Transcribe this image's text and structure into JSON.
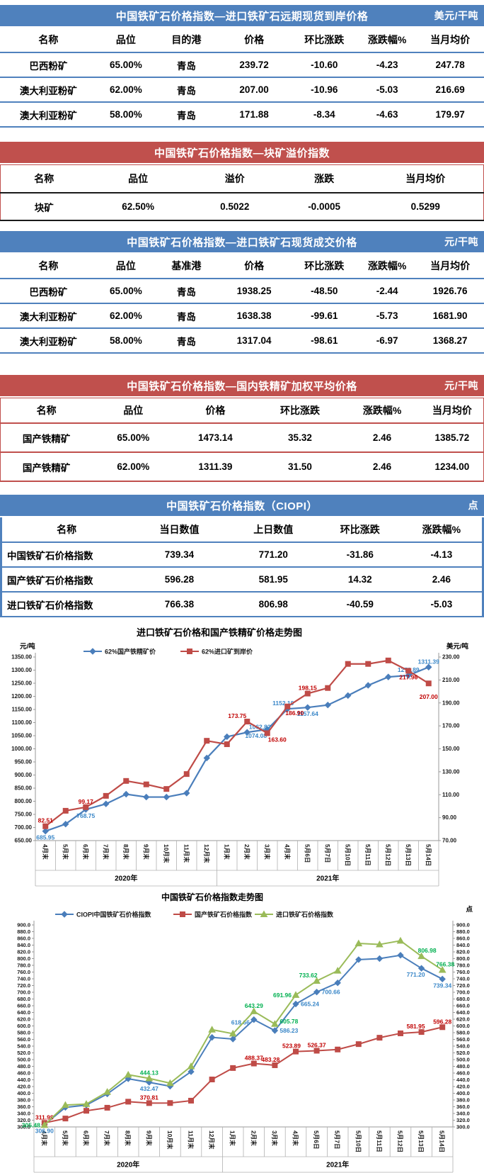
{
  "report": {
    "theme_colors": {
      "blue": "#4f81bd",
      "red": "#c0504d"
    },
    "tables": [
      {
        "id": "import-forward",
        "title": "中国铁矿石价格指数—进口铁矿石远期现货到岸价格",
        "unit": "美元/干吨",
        "theme": "blue",
        "columns": [
          "名称",
          "品位",
          "目的港",
          "价格",
          "环比涨跌",
          "涨跌幅%",
          "当月均价"
        ],
        "rows": [
          [
            "巴西粉矿",
            "65.00%",
            "青岛",
            "239.72",
            "-10.60",
            "-4.23",
            "247.78"
          ],
          [
            "澳大利亚粉矿",
            "62.00%",
            "青岛",
            "207.00",
            "-10.96",
            "-5.03",
            "216.69"
          ],
          [
            "澳大利亚粉矿",
            "58.00%",
            "青岛",
            "171.88",
            "-8.34",
            "-4.63",
            "179.97"
          ]
        ]
      },
      {
        "id": "lump-premium",
        "title": "中国铁矿石价格指数—块矿溢价指数",
        "unit": "",
        "theme": "red",
        "columns": [
          "名称",
          "品位",
          "溢价",
          "涨跌",
          "当月均价"
        ],
        "rows": [
          [
            "块矿",
            "62.50%",
            "0.5022",
            "-0.0005",
            "0.5299"
          ]
        ]
      },
      {
        "id": "import-spot",
        "title": "中国铁矿石价格指数—进口铁矿石现货成交价格",
        "unit": "元/干吨",
        "theme": "blue",
        "columns": [
          "名称",
          "品位",
          "基准港",
          "价格",
          "环比涨跌",
          "涨跌幅%",
          "当月均价"
        ],
        "rows": [
          [
            "巴西粉矿",
            "65.00%",
            "青岛",
            "1938.25",
            "-48.50",
            "-2.44",
            "1926.76"
          ],
          [
            "澳大利亚粉矿",
            "62.00%",
            "青岛",
            "1638.38",
            "-99.61",
            "-5.73",
            "1681.90"
          ],
          [
            "澳大利亚粉矿",
            "58.00%",
            "青岛",
            "1317.04",
            "-98.61",
            "-6.97",
            "1368.27"
          ]
        ]
      },
      {
        "id": "domestic-concentrate",
        "title": "中国铁矿石价格指数—国内铁精矿加权平均价格",
        "unit": "元/干吨",
        "theme": "red",
        "columns": [
          "名称",
          "品位",
          "价格",
          "环比涨跌",
          "涨跌幅%",
          "当月均价"
        ],
        "rows": [
          [
            "国产铁精矿",
            "65.00%",
            "1473.14",
            "35.32",
            "2.46",
            "1385.72"
          ],
          [
            "国产铁精矿",
            "62.00%",
            "1311.39",
            "31.50",
            "2.46",
            "1234.00"
          ]
        ]
      },
      {
        "id": "ciopi",
        "title": "中国铁矿石价格指数（CIOPI）",
        "unit": "点",
        "theme": "blue",
        "columns": [
          "名称",
          "当日数值",
          "上日数值",
          "环比涨跌",
          "涨跌幅%"
        ],
        "rows": [
          [
            "中国铁矿石价格指数",
            "739.34",
            "771.20",
            "-31.86",
            "-4.13"
          ],
          [
            "国产铁矿石价格指数",
            "596.28",
            "581.95",
            "14.32",
            "2.46"
          ],
          [
            "进口铁矿石价格指数",
            "766.38",
            "806.98",
            "-40.59",
            "-5.03"
          ]
        ]
      }
    ]
  },
  "chart_data": [
    {
      "type": "line",
      "title": "进口铁矿石价格和国产铁精矿价格走势图",
      "unit_left": "元/吨",
      "unit_right": "美元/吨",
      "legend_position": "top",
      "grid": false,
      "categories": [
        "4月末",
        "5月末",
        "6月末",
        "7月末",
        "8月末",
        "9月末",
        "10月末",
        "11月末",
        "12月末",
        "1月末",
        "2月末",
        "3月末",
        "4月末",
        "5月6日",
        "5月7日",
        "5月10日",
        "5月11日",
        "5月12日",
        "5月13日",
        "5月14日"
      ],
      "year_groups": [
        {
          "label": "2020年",
          "span": 9
        },
        {
          "label": "2021年",
          "span": 11
        }
      ],
      "axes": {
        "left": {
          "min": 650,
          "max": 1350,
          "step": 50
        },
        "right": {
          "min": 70,
          "max": 230,
          "step": 20
        }
      },
      "series": [
        {
          "name": "62%国产铁精矿价",
          "axis": "left",
          "marker": "diamond",
          "color": "#4a7ebb",
          "label_color": "#3a87c8",
          "values": [
            685.95,
            713,
            768.75,
            790,
            827,
            816,
            816,
            831,
            965,
            1046,
            1062.82,
            1074.08,
            1152.19,
            1157.64,
            1167,
            1203,
            1242,
            1274,
            1279.89,
            1311.39
          ],
          "point_labels": [
            {
              "i": 0,
              "text": "685.95",
              "pos": "below"
            },
            {
              "i": 2,
              "text": "768.75",
              "pos": "below"
            },
            {
              "i": 10,
              "text": "1062.82",
              "pos": "above",
              "dx": 18
            },
            {
              "i": 11,
              "text": "1074.08",
              "pos": "below",
              "dx": -16
            },
            {
              "i": 12,
              "text": "1152.19",
              "pos": "above",
              "dx": -6
            },
            {
              "i": 13,
              "text": "1157.64",
              "pos": "below"
            },
            {
              "i": 18,
              "text": "1279.89",
              "pos": "above"
            },
            {
              "i": 19,
              "text": "1311.39",
              "pos": "above"
            }
          ]
        },
        {
          "name": "62%进口矿到岸价",
          "axis": "right",
          "marker": "square",
          "color": "#bf4b47",
          "label_color": "#c00000",
          "values": [
            82.51,
            96,
            99.17,
            109,
            122,
            119,
            115,
            128,
            157,
            154,
            173.75,
            163.6,
            186.9,
            198.15,
            203,
            224,
            224,
            227,
            217.96,
            207.0
          ],
          "point_labels": [
            {
              "i": 0,
              "text": "82.51",
              "pos": "above"
            },
            {
              "i": 2,
              "text": "99.17",
              "pos": "above"
            },
            {
              "i": 10,
              "text": "173.75",
              "pos": "above",
              "dx": -14
            },
            {
              "i": 11,
              "text": "163.60",
              "pos": "below",
              "dx": 14
            },
            {
              "i": 12,
              "text": "186.90",
              "pos": "below",
              "dx": 10
            },
            {
              "i": 13,
              "text": "198.15",
              "pos": "above"
            },
            {
              "i": 18,
              "text": "217.96",
              "pos": "below"
            },
            {
              "i": 19,
              "text": "207.00",
              "pos": "below",
              "dy": 10
            }
          ]
        }
      ]
    },
    {
      "type": "line",
      "title": "中国铁矿石价格指数走势图",
      "unit_right": "点",
      "legend_position": "top",
      "grid": false,
      "categories": [
        "4月末",
        "5月末",
        "6月末",
        "7月末",
        "8月末",
        "9月末",
        "10月末",
        "11月末",
        "12月末",
        "1月末",
        "2月末",
        "3月末",
        "4月末",
        "5月6日",
        "5月7日",
        "5月10日",
        "5月11日",
        "5月12日",
        "5月13日",
        "5月14日"
      ],
      "year_groups": [
        {
          "label": "2020年",
          "span": 9
        },
        {
          "label": "2021年",
          "span": 11
        }
      ],
      "axes": {
        "left": {
          "min": 300,
          "max": 900,
          "step": 20
        },
        "right": {
          "min": 300,
          "max": 900,
          "step": 20
        }
      },
      "series": [
        {
          "name": "CIOPI中国铁矿石价格指数",
          "axis": "left",
          "marker": "diamond",
          "color": "#4a7ebb",
          "label_color": "#3a87c8",
          "values": [
            306.9,
            358,
            365,
            398,
            443,
            432.47,
            421,
            464,
            566,
            561,
            618.66,
            586.23,
            665.24,
            700.66,
            728,
            797,
            800,
            810,
            771.2,
            739.34
          ],
          "point_labels": [
            {
              "i": 0,
              "text": "306.90",
              "pos": "below"
            },
            {
              "i": 5,
              "text": "432.47",
              "pos": "below"
            },
            {
              "i": 10,
              "text": "618.66",
              "pos": "left",
              "dy": 4
            },
            {
              "i": 11,
              "text": "586.23",
              "pos": "right"
            },
            {
              "i": 12,
              "text": "665.24",
              "pos": "right"
            },
            {
              "i": 13,
              "text": "700.66",
              "pos": "right"
            },
            {
              "i": 18,
              "text": "771.20",
              "pos": "below",
              "dx": -8
            },
            {
              "i": 19,
              "text": "739.34",
              "pos": "below"
            }
          ]
        },
        {
          "name": "国产铁矿石价格指数",
          "axis": "left",
          "marker": "square",
          "color": "#bf4b47",
          "label_color": "#c00000",
          "values": [
            311.98,
            325,
            348,
            357,
            375,
            370.81,
            371,
            378,
            441,
            475,
            488.37,
            483.28,
            523.89,
            526.37,
            530,
            546,
            565,
            578,
            581.95,
            596.28
          ],
          "point_labels": [
            {
              "i": 0,
              "text": "311.98",
              "pos": "above"
            },
            {
              "i": 5,
              "text": "370.81",
              "pos": "above"
            },
            {
              "i": 10,
              "text": "488.37",
              "pos": "above"
            },
            {
              "i": 11,
              "text": "483.28",
              "pos": "above",
              "dx": -6
            },
            {
              "i": 12,
              "text": "523.89",
              "pos": "above",
              "dx": -6
            },
            {
              "i": 13,
              "text": "526.37",
              "pos": "above"
            },
            {
              "i": 18,
              "text": "581.95",
              "pos": "above",
              "dx": -8
            },
            {
              "i": 19,
              "text": "596.28",
              "pos": "above"
            }
          ]
        },
        {
          "name": "进口铁矿石价格指数",
          "axis": "left",
          "marker": "triangle",
          "color": "#9abb59",
          "label_color": "#00b050",
          "values": [
            305.48,
            365,
            368,
            404,
            455,
            444.13,
            430,
            480,
            589,
            577,
            643.29,
            605.78,
            691.96,
            733.62,
            764,
            845,
            842,
            853,
            806.98,
            766.38
          ],
          "point_labels": [
            {
              "i": 0,
              "text": "305.48",
              "pos": "left"
            },
            {
              "i": 5,
              "text": "444.13",
              "pos": "above"
            },
            {
              "i": 10,
              "text": "643.29",
              "pos": "above"
            },
            {
              "i": 11,
              "text": "605.78",
              "pos": "right",
              "dy": -4
            },
            {
              "i": 12,
              "text": "691.96",
              "pos": "left"
            },
            {
              "i": 13,
              "text": "733.62",
              "pos": "above",
              "dx": -12
            },
            {
              "i": 18,
              "text": "806.98",
              "pos": "above",
              "dx": 8
            },
            {
              "i": 19,
              "text": "766.38",
              "pos": "above",
              "dx": 4
            }
          ]
        }
      ]
    }
  ]
}
